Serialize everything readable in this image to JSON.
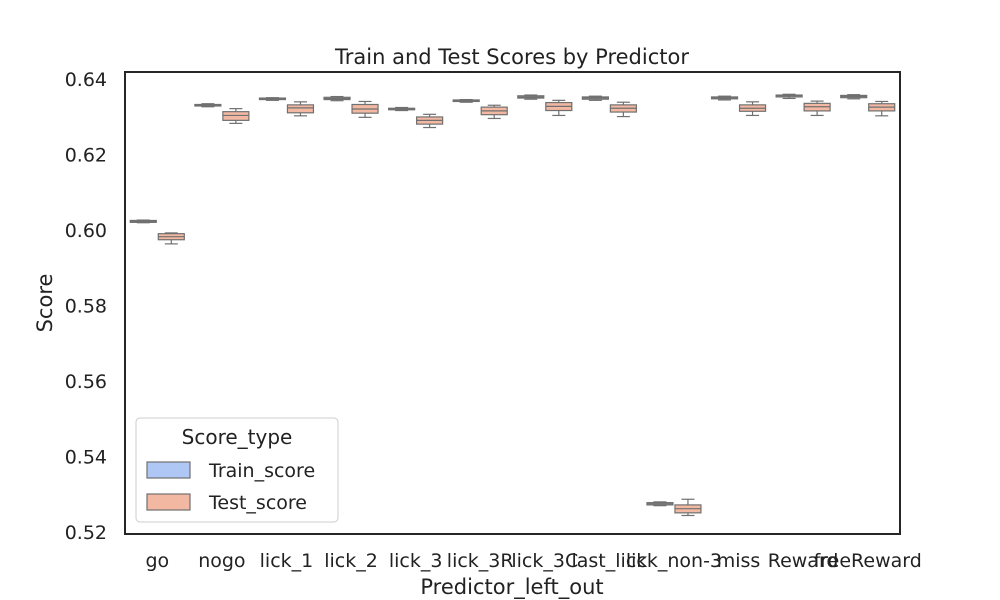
{
  "chart_data": {
    "type": "box",
    "title": "Train and Test Scores by Predictor",
    "xlabel": "Predictor_left_out",
    "ylabel": "Score",
    "ylim": [
      0.5195,
      0.6418
    ],
    "yticks": [
      "0.52",
      "0.54",
      "0.56",
      "0.58",
      "0.60",
      "0.62",
      "0.64"
    ],
    "grid": false,
    "legend": {
      "title": "Score_type",
      "position": "lower-left",
      "entries": [
        {
          "name": "Train_score",
          "color": "#aec7f4"
        },
        {
          "name": "Test_score",
          "color": "#f2b8a2"
        }
      ]
    },
    "categories": [
      "go",
      "nogo",
      "lick_1",
      "lick_2",
      "lick_3",
      "lick_3R",
      "lick_3C",
      "last_lick",
      "lick_non-3",
      "miss",
      "Reward",
      "freeReward"
    ],
    "series": [
      {
        "name": "Train_score",
        "color": "#aec7f4",
        "boxes": [
          {
            "whislo": 0.6019,
            "q1": 0.602,
            "median": 0.6022,
            "q3": 0.6025,
            "whishi": 0.6026
          },
          {
            "whislo": 0.6326,
            "q1": 0.6328,
            "median": 0.633,
            "q3": 0.6332,
            "whishi": 0.6334
          },
          {
            "whislo": 0.6343,
            "q1": 0.6345,
            "median": 0.6347,
            "q3": 0.6349,
            "whishi": 0.635
          },
          {
            "whislo": 0.6342,
            "q1": 0.6345,
            "median": 0.6348,
            "q3": 0.6351,
            "whishi": 0.6353
          },
          {
            "whislo": 0.6316,
            "q1": 0.6318,
            "median": 0.632,
            "q3": 0.6322,
            "whishi": 0.6324
          },
          {
            "whislo": 0.6338,
            "q1": 0.634,
            "median": 0.6342,
            "q3": 0.6344,
            "whishi": 0.6345
          },
          {
            "whislo": 0.6346,
            "q1": 0.6349,
            "median": 0.6352,
            "q3": 0.6355,
            "whishi": 0.6357
          },
          {
            "whislo": 0.6343,
            "q1": 0.6346,
            "median": 0.6349,
            "q3": 0.6352,
            "whishi": 0.6354
          },
          {
            "whislo": 0.527,
            "q1": 0.5272,
            "median": 0.5275,
            "q3": 0.5278,
            "whishi": 0.528
          },
          {
            "whislo": 0.6344,
            "q1": 0.6347,
            "median": 0.6349,
            "q3": 0.6352,
            "whishi": 0.6354
          },
          {
            "whislo": 0.6348,
            "q1": 0.6352,
            "median": 0.6355,
            "q3": 0.6357,
            "whishi": 0.6359
          },
          {
            "whislo": 0.6347,
            "q1": 0.635,
            "median": 0.6353,
            "q3": 0.6356,
            "whishi": 0.6358
          }
        ]
      },
      {
        "name": "Test_score",
        "color": "#f2b8a2",
        "boxes": [
          {
            "whislo": 0.5963,
            "q1": 0.5974,
            "median": 0.5982,
            "q3": 0.599,
            "whishi": 0.5992
          },
          {
            "whislo": 0.6282,
            "q1": 0.629,
            "median": 0.6303,
            "q3": 0.6313,
            "whishi": 0.6321
          },
          {
            "whislo": 0.6302,
            "q1": 0.631,
            "median": 0.6323,
            "q3": 0.6331,
            "whishi": 0.6339
          },
          {
            "whislo": 0.6298,
            "q1": 0.6309,
            "median": 0.632,
            "q3": 0.6332,
            "whishi": 0.634
          },
          {
            "whislo": 0.6271,
            "q1": 0.628,
            "median": 0.629,
            "q3": 0.6299,
            "whishi": 0.6306
          },
          {
            "whislo": 0.6295,
            "q1": 0.6305,
            "median": 0.6315,
            "q3": 0.6325,
            "whishi": 0.633
          },
          {
            "whislo": 0.6303,
            "q1": 0.6316,
            "median": 0.6327,
            "q3": 0.6337,
            "whishi": 0.6343
          },
          {
            "whislo": 0.63,
            "q1": 0.6312,
            "median": 0.6322,
            "q3": 0.6331,
            "whishi": 0.6338
          },
          {
            "whislo": 0.5244,
            "q1": 0.5251,
            "median": 0.5262,
            "q3": 0.5272,
            "whishi": 0.5287
          },
          {
            "whislo": 0.6303,
            "q1": 0.6314,
            "median": 0.6322,
            "q3": 0.6331,
            "whishi": 0.6339
          },
          {
            "whislo": 0.6303,
            "q1": 0.6315,
            "median": 0.6326,
            "q3": 0.6335,
            "whishi": 0.6341
          },
          {
            "whislo": 0.6302,
            "q1": 0.6315,
            "median": 0.6325,
            "q3": 0.6334,
            "whishi": 0.634
          }
        ]
      }
    ]
  }
}
